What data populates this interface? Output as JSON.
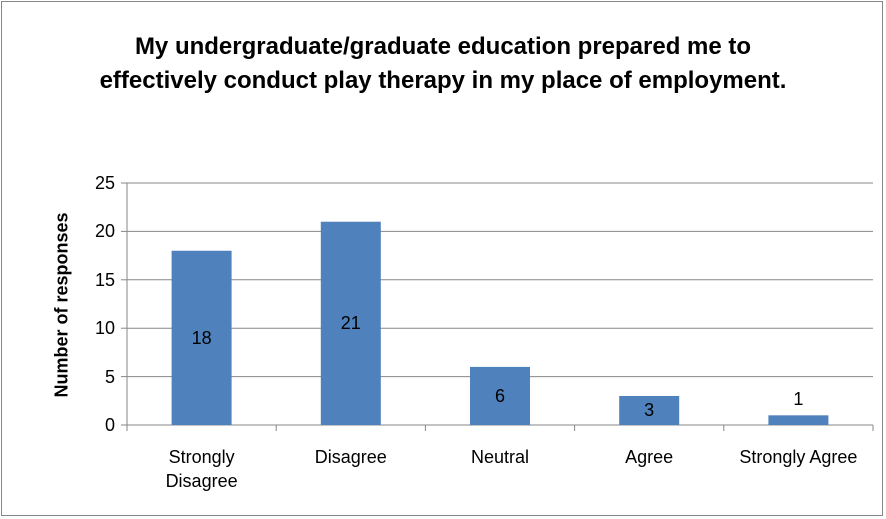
{
  "chart_data": {
    "type": "bar",
    "title": "My undergraduate/graduate education prepared me to effectively conduct play therapy in my place of employment.",
    "y_label": "Number of responses",
    "categories": [
      "Strongly Disagree",
      "Disagree",
      "Neutral",
      "Agree",
      "Strongly Agree"
    ],
    "values": [
      18,
      21,
      6,
      3,
      1
    ],
    "color": "#4f81bd",
    "ylim": [
      0,
      25
    ],
    "yticks": [
      0,
      5,
      10,
      15,
      20,
      25
    ],
    "grid": true
  }
}
